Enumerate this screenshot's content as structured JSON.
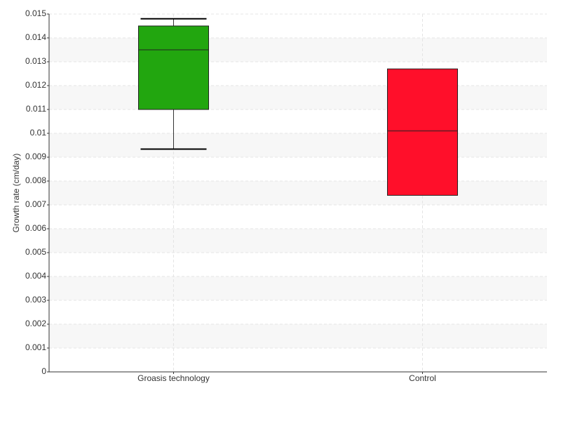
{
  "chart_data": {
    "type": "box",
    "y_label": "Growth rate (cm/day)",
    "categories": [
      "Groasis technology",
      "Control"
    ],
    "boxes": [
      {
        "whislo": 0.00934,
        "q1": 0.011,
        "med": 0.0135,
        "q3": 0.0145,
        "whishi": 0.0148,
        "color": "#22a60f"
      },
      {
        "whislo": 0.0074,
        "q1": 0.0074,
        "med": 0.0101,
        "q3": 0.0127,
        "whishi": 0.0127,
        "color": "#ff0f2a"
      }
    ],
    "ylim": [
      0,
      0.015
    ],
    "yticks": [
      0,
      0.001,
      0.002,
      0.003,
      0.004,
      0.005,
      0.006,
      0.007,
      0.008,
      0.009,
      0.01,
      0.011,
      0.012,
      0.013,
      0.014,
      0.015
    ],
    "grid": true
  }
}
